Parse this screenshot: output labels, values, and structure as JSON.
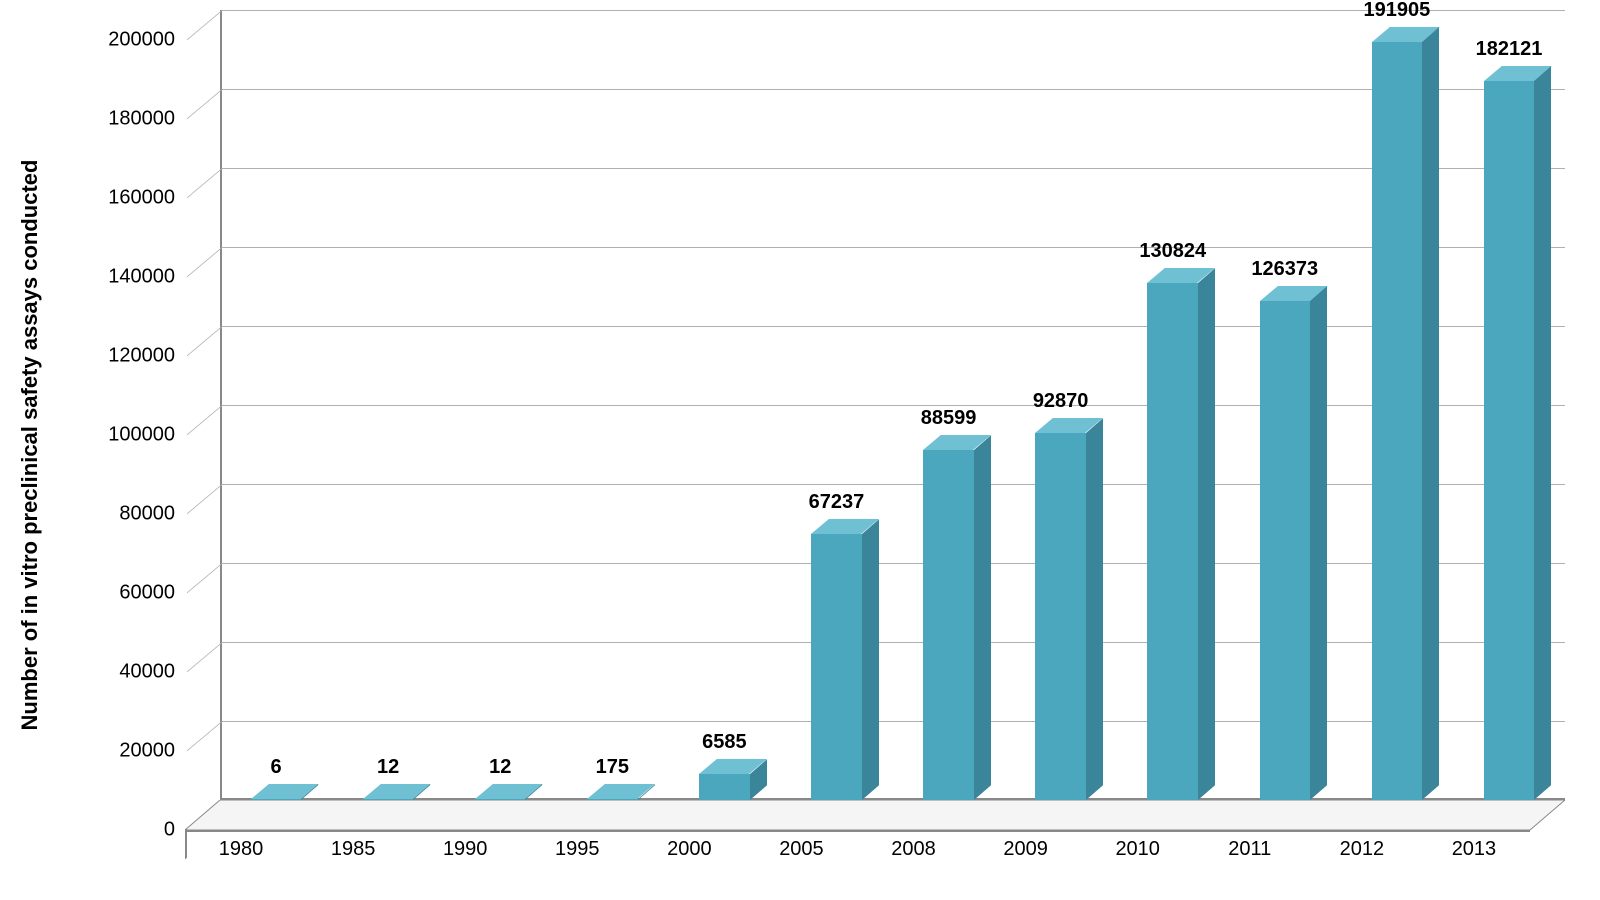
{
  "chart": {
    "type": "bar-3d",
    "y_axis_label": "Number of in vitro preclinical safety assays conducted",
    "y_axis_label_fontsize": 22,
    "y_axis_label_color": "#000000",
    "y_axis_label_fontweight": "bold",
    "categories": [
      "1980",
      "1985",
      "1990",
      "1995",
      "2000",
      "2005",
      "2008",
      "2009",
      "2010",
      "2011",
      "2012",
      "2013"
    ],
    "values": [
      6,
      12,
      12,
      175,
      6585,
      67237,
      88599,
      92870,
      130824,
      126373,
      191905,
      182121
    ],
    "value_labels": [
      "6",
      "12",
      "12",
      "175",
      "6585",
      "67237",
      "88599",
      "92870",
      "130824",
      "126373",
      "191905",
      "182121"
    ],
    "ylim": [
      0,
      200000
    ],
    "ytick_step": 20000,
    "ytick_labels": [
      "0",
      "20000",
      "40000",
      "60000",
      "80000",
      "100000",
      "120000",
      "140000",
      "160000",
      "180000",
      "200000"
    ],
    "bar_color_front": "#4ba7bd",
    "bar_color_top": "#6fc0d3",
    "bar_color_side": "#3a8599",
    "grid_color": "#b0b0b0",
    "background_color": "#ffffff",
    "tick_label_fontsize": 20,
    "tick_label_color": "#000000",
    "value_label_fontsize": 20,
    "value_label_color": "#000000",
    "bar_width_ratio": 0.45,
    "plot_3d_depth": 35
  }
}
